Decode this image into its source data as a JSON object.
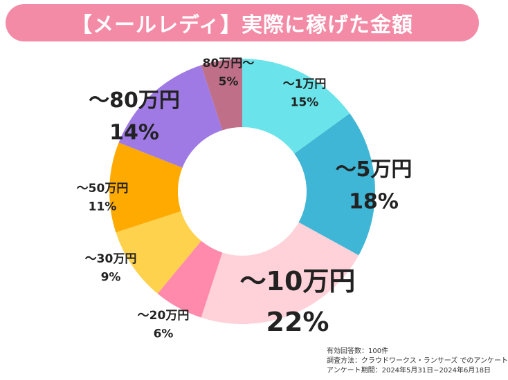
{
  "title": "【メールレディ】実際に稼げた金額",
  "chart_data": {
    "type": "pie",
    "style": "donut",
    "start": "top",
    "direction": "clockwise",
    "slices": [
      {
        "label": "〜1万円",
        "value": 15,
        "pct_text": "15%",
        "color": "#6ae4ea",
        "highlight": false
      },
      {
        "label": "〜5万円",
        "value": 18,
        "pct_text": "18%",
        "color": "#40b6d6",
        "highlight": true,
        "label_color": "#f0457a"
      },
      {
        "label": "〜10万円",
        "value": 22,
        "pct_text": "22%",
        "color": "#ffd1d8",
        "highlight": true,
        "label_color": "#f7a500"
      },
      {
        "label": "〜20万円",
        "value": 6,
        "pct_text": "6%",
        "color": "#ff8aab",
        "highlight": false
      },
      {
        "label": "〜30万円",
        "value": 9,
        "pct_text": "9%",
        "color": "#ffd24d",
        "highlight": false
      },
      {
        "label": "〜50万円",
        "value": 11,
        "pct_text": "11%",
        "color": "#ffaa00",
        "highlight": false
      },
      {
        "label": "〜80万円",
        "value": 14,
        "pct_text": "14%",
        "color": "#9f7ae4",
        "highlight": true,
        "label_color": "#f48ba6"
      },
      {
        "label": "80万円〜",
        "value": 5,
        "pct_text": "5%",
        "color": "#bf6f88",
        "highlight": false
      }
    ]
  },
  "footer": {
    "responses": "有効回答数：100件",
    "method": "調査方法：クラウドワークス・ランサーズ でのアンケート",
    "period": "アンケート期間：2024年5月31日−2024年6月18日"
  }
}
